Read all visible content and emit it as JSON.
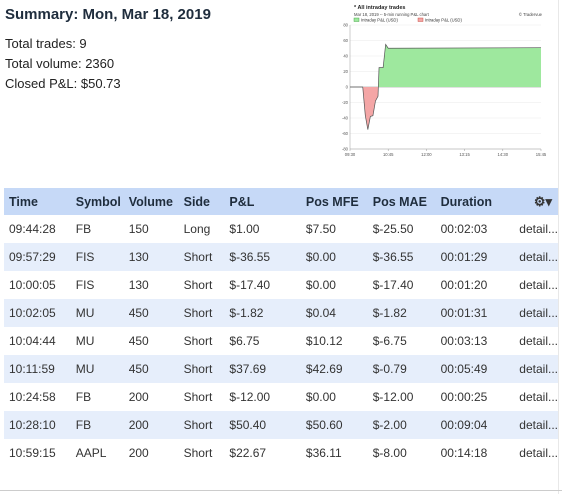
{
  "summary": {
    "title": "Summary: Mon, Mar 18, 2019",
    "total_trades": "Total trades: 9",
    "total_volume": "Total volume: 2360",
    "closed_pnl": "Closed P&L: $50.73"
  },
  "chart": {
    "title": "* All intraday trades",
    "subtitle": "Mar 18, 2019 -- 5-min running P&L chart",
    "brand": "© Tradervue",
    "legend": [
      "Intraday P&L (USD)",
      "Intraday P&L (USD)"
    ],
    "colors": {
      "positive": "#9ee89e",
      "negative": "#f4a6a6",
      "line_pos": "#2e9a2e",
      "line_neg": "#c0392b"
    }
  },
  "chart_data": {
    "type": "area",
    "title": "* All intraday trades",
    "x_tick_labels": [
      "09:30",
      "10:45",
      "12:00",
      "13:15",
      "14:30",
      "15:45"
    ],
    "y_tick_labels": [
      "80",
      "60",
      "40",
      "20",
      "0",
      "-20",
      "-40",
      "-60",
      "-80"
    ],
    "ylim": [
      -80,
      80
    ],
    "xlim_minutes": [
      570,
      945
    ],
    "series": [
      {
        "name": "Intraday P&L (USD)",
        "points": [
          {
            "t": 570,
            "v": 0
          },
          {
            "t": 595,
            "v": 0
          },
          {
            "t": 600,
            "v": -36.55
          },
          {
            "t": 605,
            "v": -55
          },
          {
            "t": 610,
            "v": -38
          },
          {
            "t": 615,
            "v": -37
          },
          {
            "t": 620,
            "v": -18
          },
          {
            "t": 625,
            "v": -12
          },
          {
            "t": 627,
            "v": 25
          },
          {
            "t": 635,
            "v": 25
          },
          {
            "t": 640,
            "v": 55
          },
          {
            "t": 645,
            "v": 50
          },
          {
            "t": 945,
            "v": 50.73
          }
        ]
      }
    ]
  },
  "table": {
    "headers": [
      "Time",
      "Symbol",
      "Volume",
      "Side",
      "P&L",
      "Pos MFE",
      "Pos MAE",
      "Duration"
    ],
    "settings_icon": "gear-icon",
    "rows": [
      {
        "time": "09:44:28",
        "symbol": "FB",
        "volume": "150",
        "side": "Long",
        "pnl": "$1.00",
        "mfe": "$7.50",
        "mae": "$-25.50",
        "duration": "00:02:03",
        "link": "detail..."
      },
      {
        "time": "09:57:29",
        "symbol": "FIS",
        "volume": "130",
        "side": "Short",
        "pnl": "$-36.55",
        "mfe": "$0.00",
        "mae": "$-36.55",
        "duration": "00:01:29",
        "link": "detail..."
      },
      {
        "time": "10:00:05",
        "symbol": "FIS",
        "volume": "130",
        "side": "Short",
        "pnl": "$-17.40",
        "mfe": "$0.00",
        "mae": "$-17.40",
        "duration": "00:01:20",
        "link": "detail..."
      },
      {
        "time": "10:02:05",
        "symbol": "MU",
        "volume": "450",
        "side": "Short",
        "pnl": "$-1.82",
        "mfe": "$0.04",
        "mae": "$-1.82",
        "duration": "00:01:31",
        "link": "detail..."
      },
      {
        "time": "10:04:44",
        "symbol": "MU",
        "volume": "450",
        "side": "Short",
        "pnl": "$6.75",
        "mfe": "$10.12",
        "mae": "$-6.75",
        "duration": "00:03:13",
        "link": "detail..."
      },
      {
        "time": "10:11:59",
        "symbol": "MU",
        "volume": "450",
        "side": "Short",
        "pnl": "$37.69",
        "mfe": "$42.69",
        "mae": "$-0.79",
        "duration": "00:05:49",
        "link": "detail..."
      },
      {
        "time": "10:24:58",
        "symbol": "FB",
        "volume": "200",
        "side": "Short",
        "pnl": "$-12.00",
        "mfe": "$0.00",
        "mae": "$-12.00",
        "duration": "00:00:25",
        "link": "detail..."
      },
      {
        "time": "10:28:10",
        "symbol": "FB",
        "volume": "200",
        "side": "Short",
        "pnl": "$50.40",
        "mfe": "$50.60",
        "mae": "$-2.00",
        "duration": "00:09:04",
        "link": "detail..."
      },
      {
        "time": "10:59:15",
        "symbol": "AAPL",
        "volume": "200",
        "side": "Short",
        "pnl": "$22.67",
        "mfe": "$36.11",
        "mae": "$-8.00",
        "duration": "00:14:18",
        "link": "detail..."
      }
    ]
  }
}
